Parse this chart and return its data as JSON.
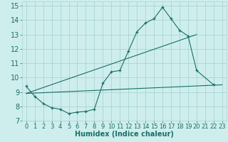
{
  "xlabel": "Humidex (Indice chaleur)",
  "background_color": "#ceeeed",
  "grid_color": "#aad4d2",
  "line_color": "#1a6e65",
  "xlim": [
    -0.5,
    23.5
  ],
  "ylim": [
    7,
    15.3
  ],
  "yticks": [
    7,
    8,
    9,
    10,
    11,
    12,
    13,
    14,
    15
  ],
  "xticks": [
    0,
    1,
    2,
    3,
    4,
    5,
    6,
    7,
    8,
    9,
    10,
    11,
    12,
    13,
    14,
    15,
    16,
    17,
    18,
    19,
    20,
    21,
    22,
    23
  ],
  "curve_x": [
    0,
    1,
    2,
    3,
    4,
    5,
    6,
    7,
    8,
    9,
    10,
    11,
    12,
    13,
    14,
    15,
    16,
    17,
    18,
    19,
    20,
    22
  ],
  "curve_y": [
    9.4,
    8.7,
    8.2,
    7.9,
    7.8,
    7.5,
    7.6,
    7.65,
    7.8,
    9.6,
    10.4,
    10.5,
    11.85,
    13.2,
    13.8,
    14.1,
    14.9,
    14.1,
    13.3,
    12.9,
    10.5,
    9.5
  ],
  "trend1_x": [
    0,
    23
  ],
  "trend1_y": [
    8.9,
    9.5
  ],
  "trend2_x": [
    0,
    20
  ],
  "trend2_y": [
    8.9,
    13.0
  ],
  "xlabel_fontsize": 7,
  "tick_fontsize": 6
}
